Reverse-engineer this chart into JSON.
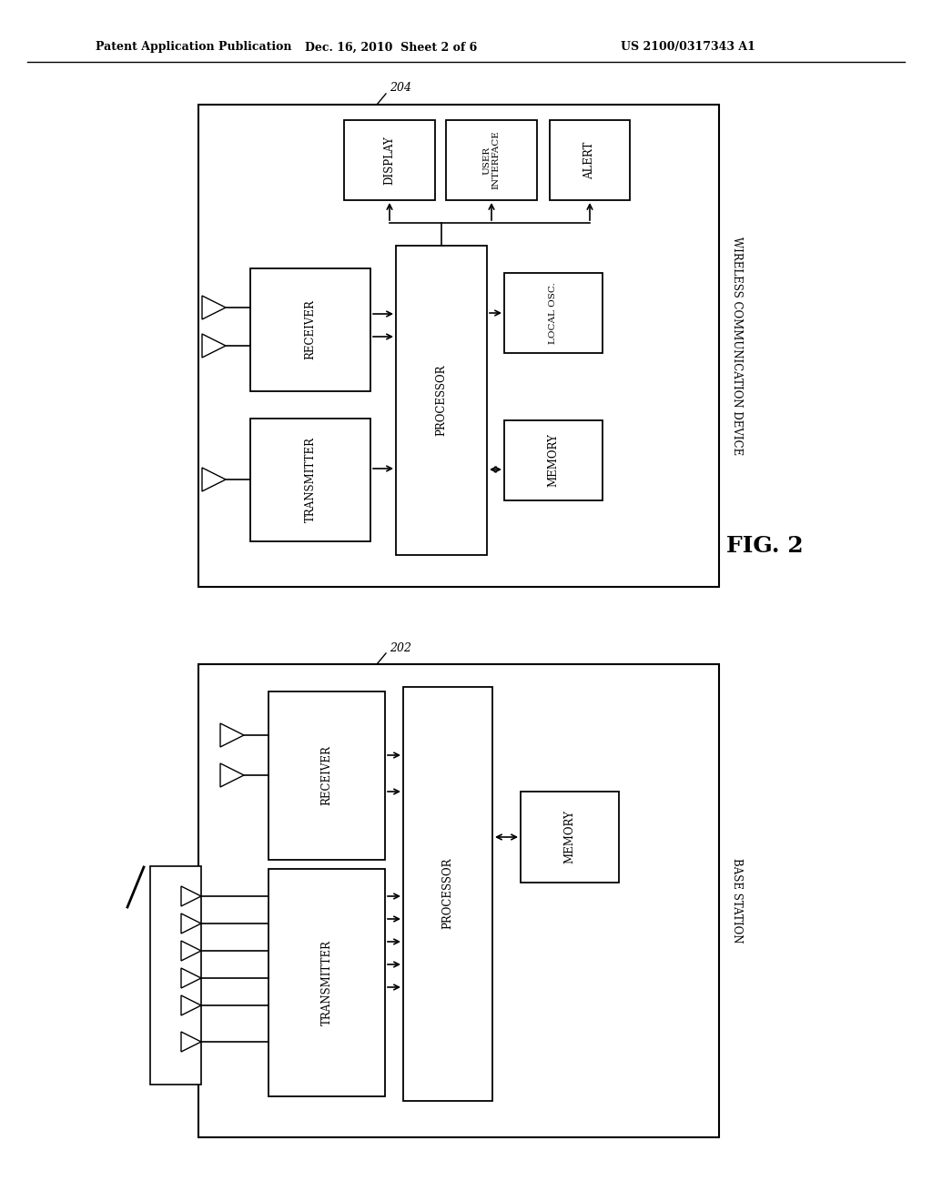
{
  "background_color": "#ffffff",
  "header_left": "Patent Application Publication",
  "header_center": "Dec. 16, 2010  Sheet 2 of 6",
  "header_right": "US 2100/0317343 A1",
  "fig_label": "FIG. 2",
  "wcd": {
    "label": "204",
    "title": "WIRELESS COMMUNICATION DEVICE"
  },
  "bs": {
    "label": "202",
    "title": "BASE STATION"
  }
}
